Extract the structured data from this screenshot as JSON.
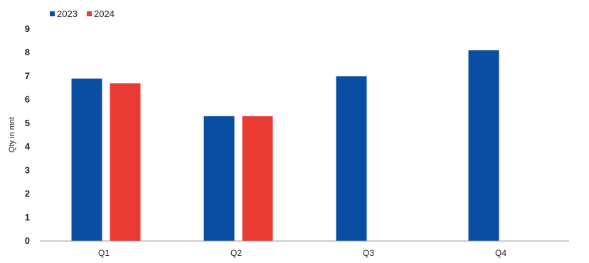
{
  "chart_data": {
    "type": "bar",
    "title": "",
    "xlabel": "",
    "ylabel": "Qty in mnt",
    "categories": [
      "Q1",
      "Q2",
      "Q3",
      "Q4"
    ],
    "series": [
      {
        "name": "2023",
        "color": "#0a4ea3",
        "values": [
          6.9,
          5.3,
          7.0,
          8.1
        ]
      },
      {
        "name": "2024",
        "color": "#ea3a34",
        "values": [
          6.7,
          5.3,
          null,
          null
        ]
      }
    ],
    "ylim": [
      0,
      9
    ],
    "yticks": [
      0,
      1,
      2,
      3,
      4,
      5,
      6,
      7,
      8,
      9
    ],
    "grid": false,
    "legend_position": "top-left"
  }
}
